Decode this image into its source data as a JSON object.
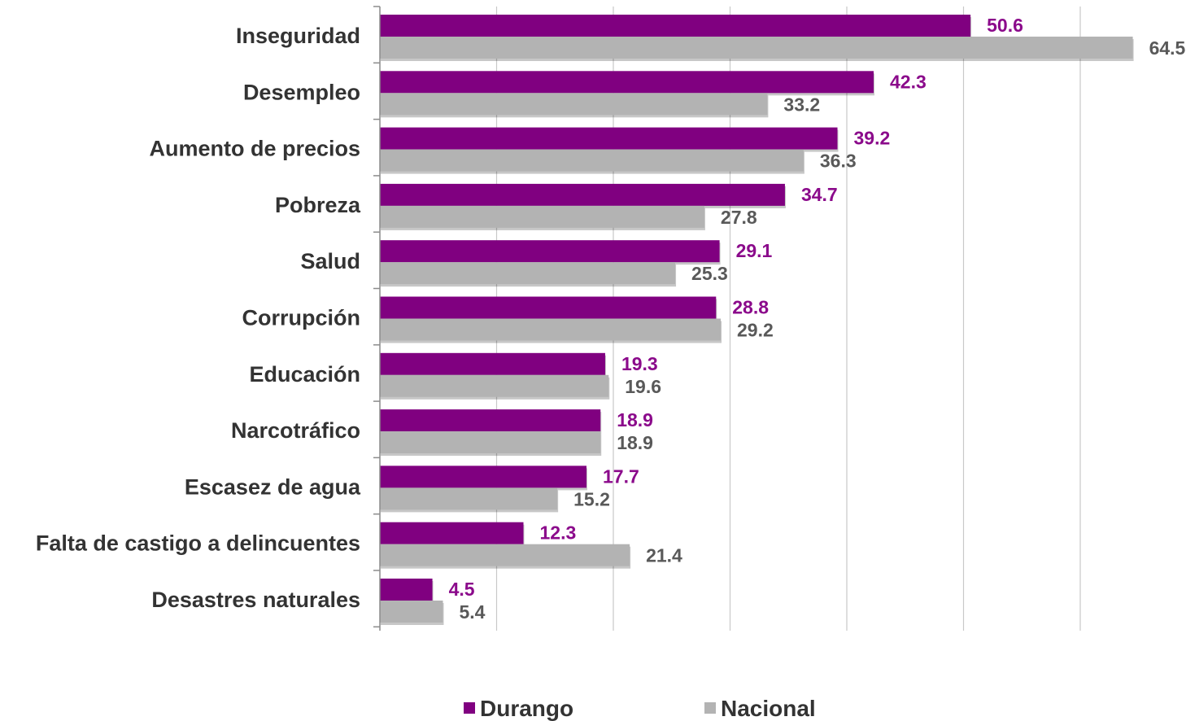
{
  "chart_data": {
    "type": "bar",
    "orientation": "horizontal",
    "categories": [
      "Inseguridad",
      "Desempleo",
      "Aumento de precios",
      "Pobreza",
      "Salud",
      "Corrupción",
      "Educación",
      "Narcotráfico",
      "Escasez de agua",
      "Falta de castigo a delincuentes",
      "Desastres naturales"
    ],
    "series": [
      {
        "name": "Durango",
        "color": "#800080",
        "label_color": "#8B0A8B",
        "values": [
          50.6,
          42.3,
          39.2,
          34.7,
          29.1,
          28.8,
          19.3,
          18.9,
          17.7,
          12.3,
          4.5
        ],
        "labels": [
          "50.6",
          "42.3",
          "39.2",
          "34.7",
          "29.1",
          "28.8",
          "19.3",
          "18.9",
          "17.7",
          "12.3",
          "4.5"
        ]
      },
      {
        "name": "Nacional",
        "color": "#B3B3B3",
        "label_color": "#595959",
        "values": [
          64.5,
          33.2,
          36.3,
          27.8,
          25.3,
          29.2,
          19.6,
          18.9,
          15.2,
          21.4,
          5.4
        ],
        "labels": [
          "64.5",
          "33.2",
          "36.3",
          "27.8",
          "25.3",
          "29.2",
          "19.6",
          "18.9",
          "15.2",
          "21.4",
          "5.4"
        ]
      }
    ],
    "xlim": [
      0,
      70
    ],
    "x_gridlines": [
      10,
      20,
      30,
      40,
      50,
      60
    ],
    "grid": true,
    "legend_position": "bottom",
    "title": "",
    "xlabel": "",
    "ylabel": ""
  }
}
